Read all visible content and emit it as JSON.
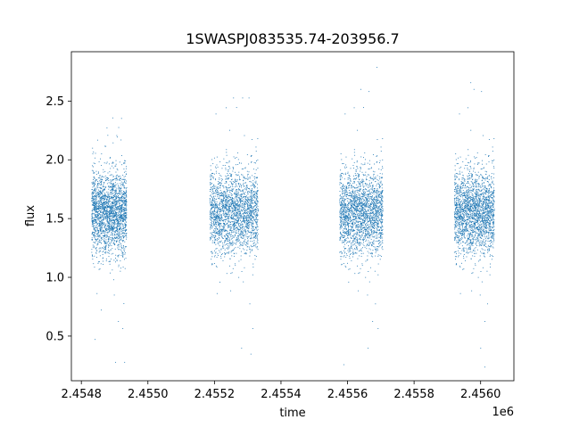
{
  "chart_data": {
    "type": "scatter",
    "title": "1SWASPJ083535.74-203956.7",
    "xlabel": "time",
    "ylabel": "flux",
    "x_offset_label": "1e6",
    "xlim": [
      2454770,
      2456100
    ],
    "ylim": [
      0.12,
      2.92
    ],
    "x_ticks": [
      2454800,
      2455000,
      2455200,
      2455400,
      2455600,
      2455800,
      2456000
    ],
    "x_tick_labels": [
      "2.4548",
      "2.4550",
      "2.4552",
      "2.4554",
      "2.4556",
      "2.4558",
      "2.4560"
    ],
    "y_ticks": [
      0.5,
      1.0,
      1.5,
      2.0,
      2.5
    ],
    "y_tick_labels": [
      "0.5",
      "1.0",
      "1.5",
      "2.0",
      "2.5"
    ],
    "grid": false,
    "legend": "none",
    "marker_color": "#1f77b4",
    "series": [
      {
        "values": [
          [
            2454830,
            1.5
          ],
          [
            2454880,
            1.52
          ],
          [
            2454930,
            1.55
          ],
          [
            2455190,
            1.52
          ],
          [
            2455240,
            1.55
          ],
          [
            2455290,
            1.56
          ],
          [
            2455580,
            1.55
          ],
          [
            2455640,
            1.56
          ],
          [
            2455700,
            1.55
          ],
          [
            2455930,
            1.55
          ],
          [
            2455980,
            1.57
          ],
          [
            2456030,
            1.56
          ]
        ]
      }
    ],
    "seasons": [
      {
        "x_range": [
          2454830,
          2454935
        ],
        "center": 1.55,
        "min": 0.28,
        "max": 2.36
      },
      {
        "x_range": [
          2455185,
          2455330
        ],
        "center": 1.55,
        "min": 0.35,
        "max": 2.53
      },
      {
        "x_range": [
          2455575,
          2455705
        ],
        "center": 1.55,
        "min": 0.26,
        "max": 2.79
      },
      {
        "x_range": [
          2455920,
          2456040
        ],
        "center": 1.55,
        "min": 0.24,
        "max": 2.66
      }
    ]
  }
}
